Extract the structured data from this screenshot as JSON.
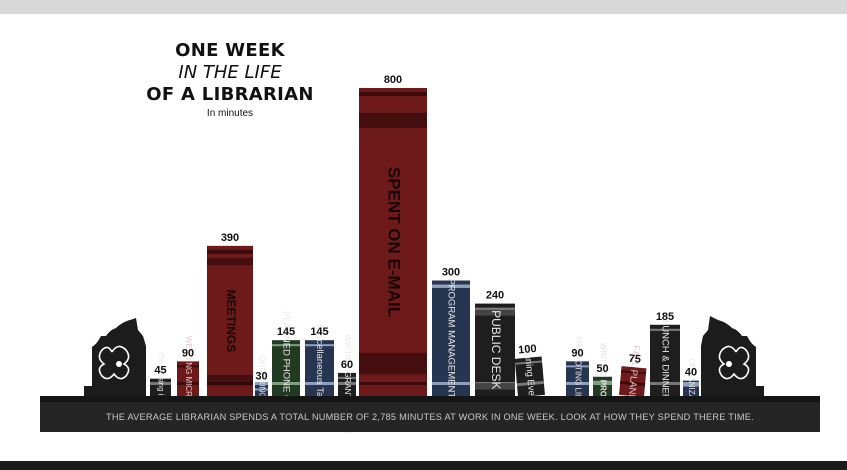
{
  "title": {
    "line1": "ONE WEEK",
    "line2": "IN THE LIFE",
    "line3": "OF A LIBRARIAN",
    "unit": "In minutes"
  },
  "footer_text": "THE AVERAGE LIBRARIAN SPENDS A TOTAL NUMBER OF 2,785 MINUTES AT WORK IN ONE WEEK. LOOK AT HOW THEY SPEND THERE TIME.",
  "chart_data": {
    "type": "bar",
    "categories": [
      "Processing invoices",
      "WEEDING MICROFILM",
      "MEETINGS",
      "ORDERING ITEMS",
      "PLANNED PHONE CALLS",
      "Miscellaneous Tasks",
      "WRITING GRANT REPORT",
      "SPENT ON E-MAIL",
      "PROGRAM MANAGEMENT",
      "PUBLIC DESK",
      "Planing Events",
      "PROMOTING LIBRARY",
      "WRITING PROPOSALS",
      "FALL PLANNING",
      "LUNCH & DINNER",
      "ORGANIZATION"
    ],
    "values": [
      45,
      90,
      390,
      30,
      145,
      145,
      60,
      800,
      300,
      240,
      100,
      90,
      50,
      75,
      185,
      40
    ],
    "colors": [
      "#1e1e1e",
      "#6e1a1a",
      "#6e1a1a",
      "#273650",
      "#223a22",
      "#273650",
      "#1e1e1e",
      "#6e1a1a",
      "#273650",
      "#1e1e1e",
      "#1e1e1e",
      "#273650",
      "#223a22",
      "#6e1a1a",
      "#1e1e1e",
      "#273650"
    ],
    "title": "ONE WEEK IN THE LIFE OF A LIBRARIAN",
    "ylabel": "In minutes"
  }
}
